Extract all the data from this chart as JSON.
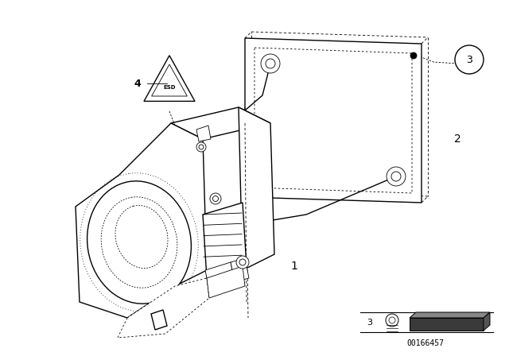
{
  "background_color": "#ffffff",
  "figsize": [
    6.4,
    4.48
  ],
  "dpi": 100,
  "diagram_id": "00166457",
  "lw_main": 1.0,
  "lw_thin": 0.6,
  "lw_thick": 1.3
}
